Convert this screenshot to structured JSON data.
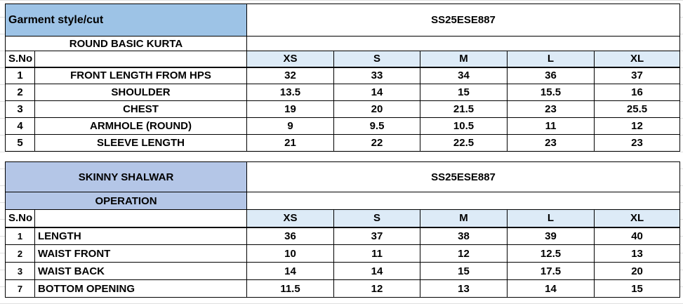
{
  "kurta": {
    "header_label": "Garment style/cut",
    "style_code": "SS25ESE887",
    "garment_name": "ROUND BASIC KURTA",
    "sno_label": "S.No",
    "sizes": [
      "XS",
      "S",
      "M",
      "L",
      "XL"
    ],
    "rows": [
      {
        "sno": "1",
        "name": "FRONT LENGTH FROM HPS",
        "values": [
          "32",
          "33",
          "34",
          "36",
          "37"
        ]
      },
      {
        "sno": "2",
        "name": "SHOULDER",
        "values": [
          "13.5",
          "14",
          "15",
          "15.5",
          "16"
        ]
      },
      {
        "sno": "3",
        "name": "CHEST",
        "values": [
          "19",
          "20",
          "21.5",
          "23",
          "25.5"
        ]
      },
      {
        "sno": "4",
        "name": "ARMHOLE (ROUND)",
        "values": [
          "9",
          "9.5",
          "10.5",
          "11",
          "12"
        ]
      },
      {
        "sno": "5",
        "name": "SLEEVE LENGTH",
        "values": [
          "21",
          "22",
          "22.5",
          "23",
          "23"
        ]
      }
    ]
  },
  "shalwar": {
    "garment_name": "SKINNY SHALWAR",
    "style_code": "SS25ESE887",
    "operation_label": "OPERATION",
    "sno_label": "S.No",
    "sizes": [
      "XS",
      "S",
      "M",
      "L",
      "XL"
    ],
    "rows": [
      {
        "sno": "1",
        "name": "LENGTH",
        "values": [
          "36",
          "37",
          "38",
          "39",
          "40"
        ]
      },
      {
        "sno": "2",
        "name": "WAIST FRONT",
        "values": [
          "10",
          "11",
          "12",
          "12.5",
          "13"
        ]
      },
      {
        "sno": "3",
        "name": "WAIST BACK",
        "values": [
          "14",
          "14",
          "15",
          "17.5",
          "20"
        ]
      },
      {
        "sno": "7",
        "name": "BOTTOM OPENING",
        "values": [
          "11.5",
          "12",
          "13",
          "14",
          "15"
        ]
      }
    ]
  }
}
